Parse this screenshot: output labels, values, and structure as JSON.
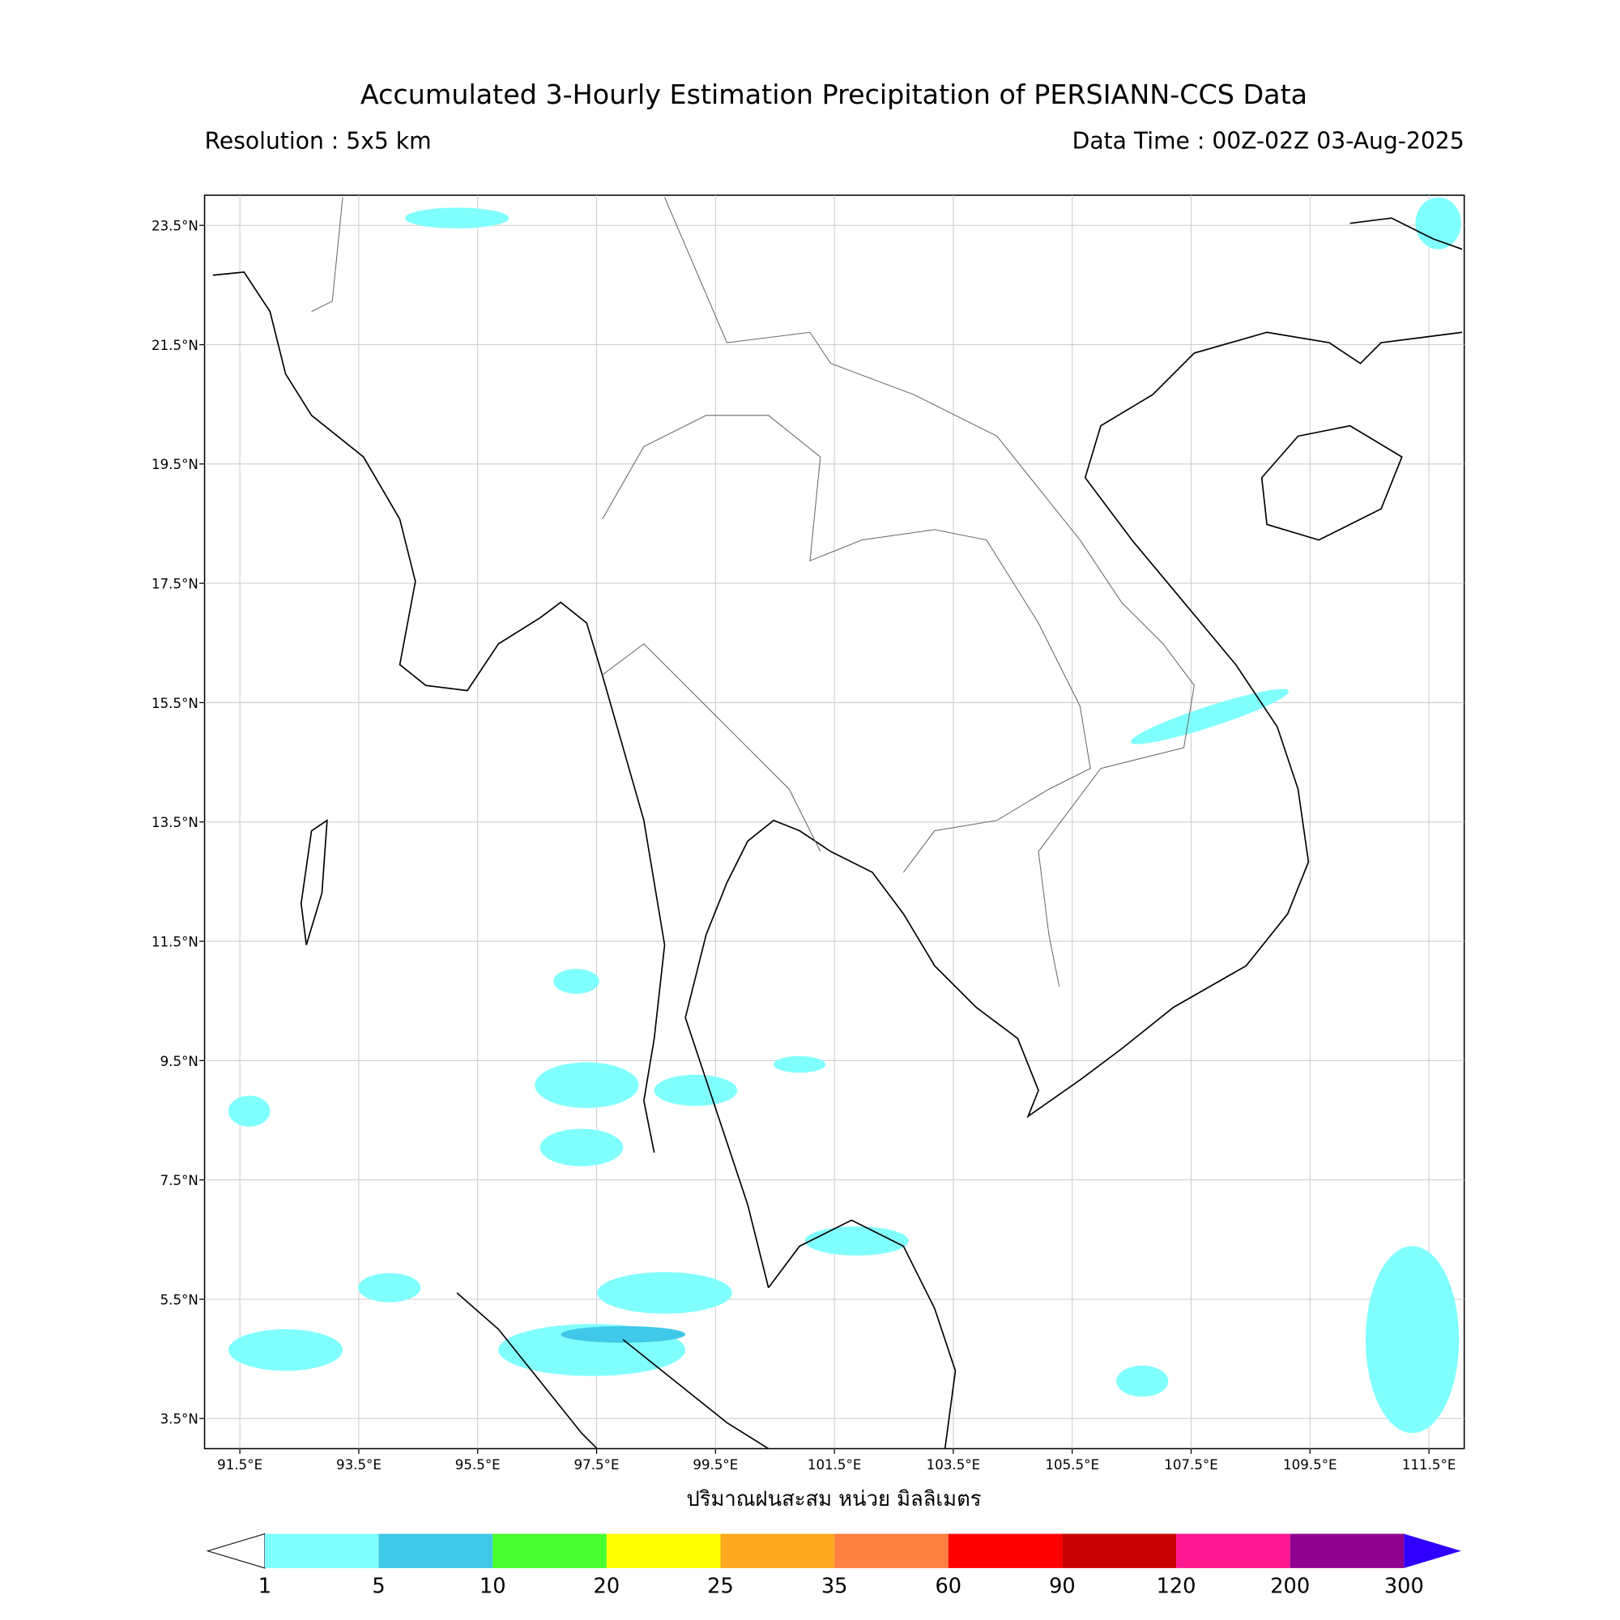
{
  "header": {
    "title": "Accumulated 3-Hourly Estimation Precipitation of PERSIANN-CCS Data",
    "resolution": "Resolution : 5x5 km",
    "data_time": "Data Time : 00Z-02Z 03-Aug-2025"
  },
  "map": {
    "lon_ticks": [
      "91.5°E",
      "93.5°E",
      "95.5°E",
      "97.5°E",
      "99.5°E",
      "101.5°E",
      "103.5°E",
      "105.5°E",
      "107.5°E",
      "109.5°E",
      "111.5°E"
    ],
    "lat_ticks": [
      "23.5°N",
      "21.5°N",
      "19.5°N",
      "17.5°N",
      "15.5°N",
      "13.5°N",
      "11.5°N",
      "9.5°N",
      "7.5°N",
      "5.5°N",
      "3.5°N"
    ],
    "xlabel": "ปริมาณฝนสะสม หน่วย มิลลิเมตร"
  },
  "colorbar": {
    "levels": [
      1,
      5,
      10,
      20,
      25,
      35,
      60,
      90,
      120,
      200,
      300
    ],
    "colors": [
      "#80ffff",
      "#40c8e8",
      "#48ff30",
      "#ffff00",
      "#ffa820",
      "#ff8040",
      "#ff0000",
      "#c80000",
      "#ff1890",
      "#900090"
    ],
    "over_color": "#3000ff"
  }
}
